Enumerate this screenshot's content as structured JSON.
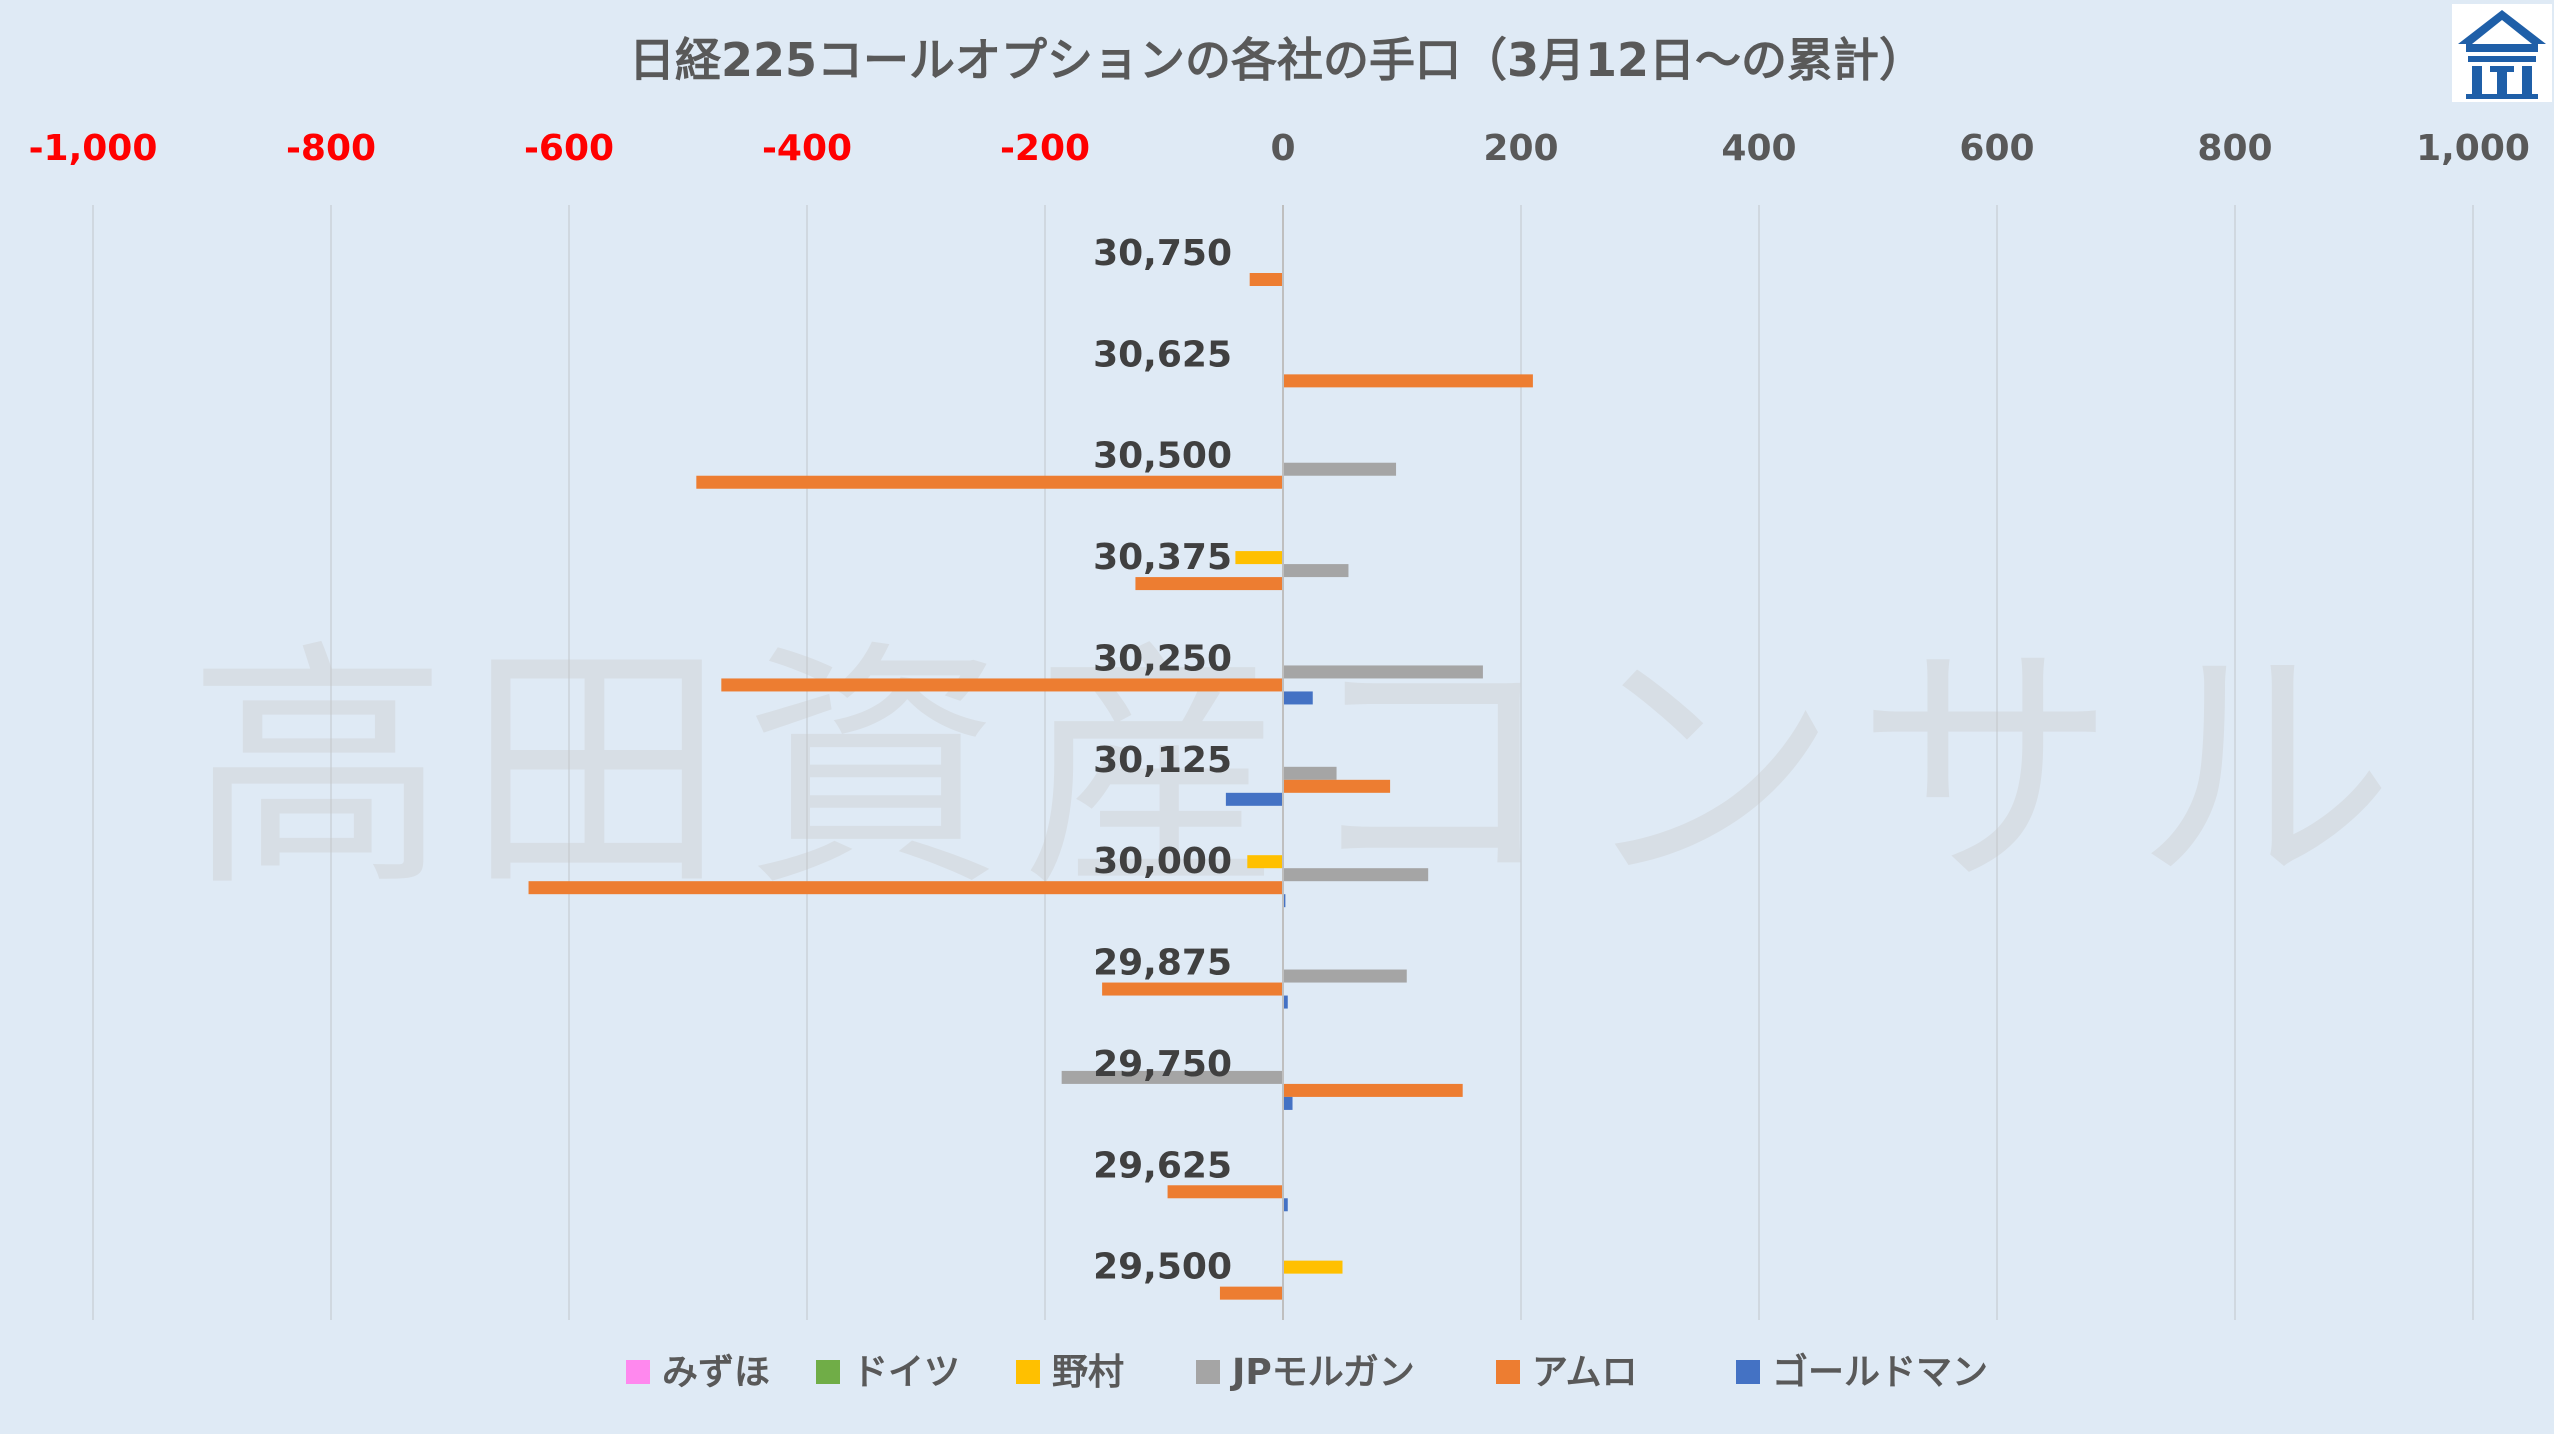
{
  "chart_data": {
    "type": "bar",
    "orientation": "horizontal",
    "title": "日経225コールオプションの各社の手口（3月12日～の累計）",
    "watermark": "高田資産コンサル",
    "xlim": [
      -1000,
      1000
    ],
    "x_ticks": [
      -1000,
      -800,
      -600,
      -400,
      -200,
      0,
      200,
      400,
      600,
      800,
      1000
    ],
    "x_tick_labels": [
      "-1,000",
      "-800",
      "-600",
      "-400",
      "-200",
      "0",
      "200",
      "400",
      "600",
      "800",
      "1,000"
    ],
    "negative_tick_color": "#ff0000",
    "positive_tick_color": "#595959",
    "grid": true,
    "legend_position": "bottom",
    "categories": [
      "30,750",
      "30,625",
      "30,500",
      "30,375",
      "30,250",
      "30,125",
      "30,000",
      "29,875",
      "29,750",
      "29,625",
      "29,500"
    ],
    "series": [
      {
        "name": "みずほ",
        "color": "#ff88ee",
        "values": [
          0,
          0,
          0,
          0,
          0,
          0,
          0,
          0,
          0,
          0,
          0
        ]
      },
      {
        "name": "ドイツ",
        "color": "#70ad47",
        "values": [
          0,
          0,
          0,
          0,
          0,
          0,
          0,
          0,
          0,
          0,
          0
        ]
      },
      {
        "name": "野村",
        "color": "#ffc000",
        "values": [
          0,
          0,
          0,
          -40,
          0,
          0,
          -30,
          0,
          0,
          0,
          50
        ]
      },
      {
        "name": "JPモルガン",
        "color": "#a5a5a5",
        "values": [
          0,
          0,
          95,
          55,
          168,
          45,
          122,
          104,
          -186,
          0,
          0
        ]
      },
      {
        "name": "アムロ",
        "color": "#ed7d31",
        "values": [
          -28,
          210,
          -493,
          -124,
          -472,
          90,
          -634,
          -152,
          151,
          -97,
          -53
        ]
      },
      {
        "name": "ゴールドマン",
        "color": "#4472c4",
        "values": [
          0,
          0,
          0,
          0,
          25,
          -48,
          2,
          4,
          8,
          4,
          0
        ]
      }
    ]
  }
}
